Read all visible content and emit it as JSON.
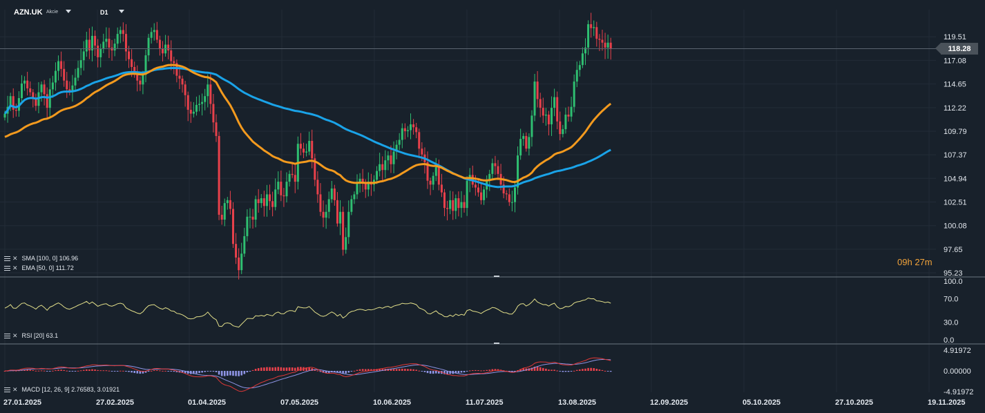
{
  "header": {
    "symbol": "AZN.UK",
    "symbol_type": "Akcie",
    "timeframe": "D1"
  },
  "price_tag": "118.28",
  "countdown": {
    "hours": "09",
    "h_unit": "h",
    "minutes": "27",
    "m_unit": "m"
  },
  "legends": {
    "sma": "SMA [100, 0] 106.96",
    "ema": "EMA [50, 0] 111.72",
    "rsi": "RSI [20] 63.1",
    "macd": "MACD [12, 26, 9] 2.76583, 3.01921"
  },
  "colors": {
    "background": "#18212b",
    "bull": "#2fbf71",
    "bear": "#e8414b",
    "sma": "#1aa3e8",
    "ema": "#f39a1e",
    "rsi": "#e3e08a",
    "macd_line": "#e03838",
    "macd_signal": "#8f95e6",
    "hist_pos": "#e8414b",
    "hist_neg": "#8f95e6"
  },
  "chart_data": [
    {
      "type": "candlestick",
      "title": "AZN.UK",
      "y_ticks": [
        "119.51",
        "117.08",
        "114.65",
        "112.22",
        "109.79",
        "107.37",
        "104.94",
        "102.51",
        "100.08",
        "97.65",
        "95.23"
      ],
      "ylim": [
        95.23,
        121.94
      ],
      "x_ticks": [
        "27.01.2025",
        "27.02.2025",
        "01.04.2025",
        "07.05.2025",
        "10.06.2025",
        "11.07.2025",
        "13.08.2025",
        "12.09.2025",
        "05.10.2025",
        "27.10.2025",
        "19.11.2025"
      ],
      "last_price": 118.28,
      "close": [
        111.6,
        112.3,
        113.4,
        112.0,
        111.9,
        113.2,
        114.7,
        115.0,
        114.2,
        113.8,
        113.2,
        112.4,
        113.8,
        114.6,
        113.6,
        112.2,
        114.1,
        114.8,
        116.0,
        117.0,
        116.2,
        115.0,
        114.1,
        113.8,
        114.5,
        115.3,
        116.3,
        117.1,
        118.0,
        119.2,
        118.1,
        119.6,
        118.6,
        117.4,
        118.3,
        119.0,
        119.3,
        118.4,
        118.1,
        118.8,
        119.8,
        120.2,
        119.8,
        118.0,
        117.2,
        116.4,
        115.8,
        115.0,
        114.6,
        115.6,
        117.6,
        119.4,
        120.0,
        120.2,
        119.2,
        118.3,
        117.8,
        118.7,
        118.1,
        117.0,
        116.8,
        115.5,
        115.2,
        114.6,
        113.5,
        112.0,
        111.6,
        111.8,
        112.5,
        112.6,
        112.8,
        113.4,
        114.6,
        112.6,
        110.7,
        109.3,
        101.2,
        100.7,
        102.4,
        102.7,
        101.8,
        98.2,
        96.8,
        95.5,
        97.2,
        99.0,
        101.0,
        101.0,
        100.7,
        102.8,
        102.4,
        102.9,
        102.1,
        103.3,
        102.6,
        102.0,
        103.8,
        104.6,
        103.2,
        103.1,
        104.6,
        105.4,
        105.3,
        104.6,
        108.5,
        108.0,
        107.6,
        107.7,
        108.8,
        107.0,
        104.8,
        103.3,
        101.5,
        100.9,
        101.5,
        102.8,
        103.9,
        102.7,
        100.3,
        101.5,
        97.6,
        98.9,
        101.5,
        102.8,
        103.3,
        104.4,
        104.9,
        104.5,
        103.8,
        104.6,
        104.3,
        104.8,
        105.7,
        106.4,
        105.8,
        106.8,
        107.3,
        106.4,
        107.7,
        108.4,
        108.9,
        110.1,
        109.8,
        109.9,
        110.5,
        110.2,
        109.7,
        108.0,
        107.4,
        106.6,
        104.7,
        104.3,
        105.2,
        106.1,
        104.3,
        103.5,
        101.9,
        101.8,
        102.7,
        101.6,
        102.9,
        101.9,
        102.5,
        101.9,
        104.7,
        105.3,
        104.3,
        104.0,
        103.5,
        102.7,
        103.8,
        104.7,
        105.4,
        106.5,
        106.2,
        105.4,
        104.3,
        103.4,
        103.3,
        102.5,
        102.5,
        104.0,
        107.3,
        109.0,
        109.3,
        108.0,
        109.2,
        111.4,
        114.9,
        113.1,
        112.2,
        111.4,
        111.5,
        110.5,
        112.2,
        113.3,
        110.8,
        109.5,
        110.0,
        111.5,
        111.3,
        112.3,
        114.9,
        116.1,
        116.6,
        117.8,
        118.4,
        120.8,
        120.4,
        120.5,
        119.3,
        119.2,
        118.9,
        118.4,
        118.9,
        118.3
      ]
    },
    {
      "type": "line",
      "series": [
        {
          "name": "SMA [100, 0]",
          "last": 106.96
        },
        {
          "name": "EMA [50, 0]",
          "last": 111.72
        }
      ]
    },
    {
      "type": "line",
      "title": "RSI [20]",
      "y_ticks": [
        "100.0",
        "70.0",
        "30.0",
        "0.0"
      ],
      "ylim": [
        0,
        100
      ],
      "last": 63.1
    },
    {
      "type": "bar",
      "title": "MACD [12, 26, 9]",
      "y_ticks": [
        "4.91972",
        "0.00000",
        "-4.91972"
      ],
      "ylim": [
        -4.91972,
        4.91972
      ],
      "macd_last": 2.76583,
      "signal_last": 3.01921
    }
  ]
}
